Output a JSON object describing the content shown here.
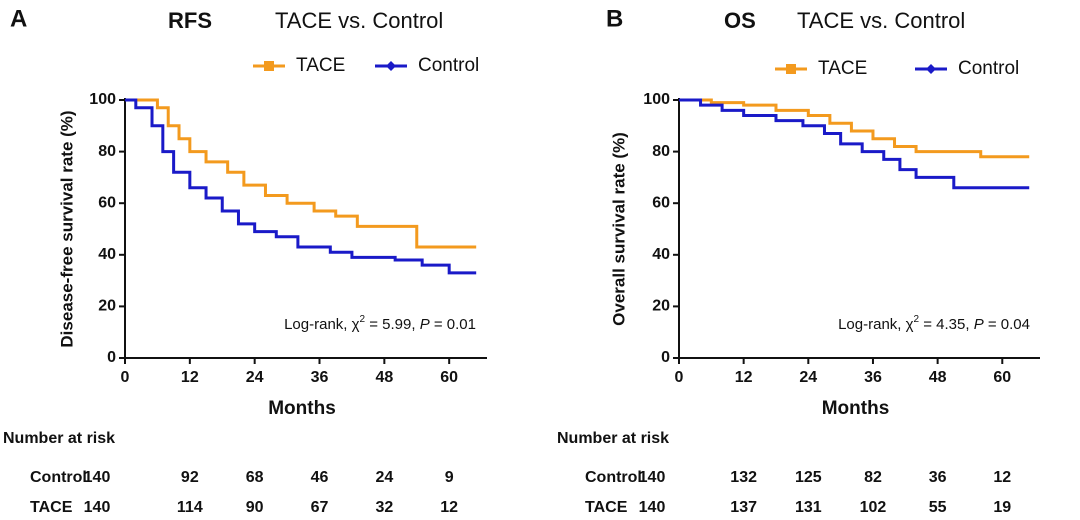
{
  "chart_data": [
    {
      "type": "line",
      "step": true,
      "panel": "A",
      "title": "RFS",
      "subtitle": "TACE vs. Control",
      "xlabel": "Months",
      "ylabel": "Disease-free survival rate (%)",
      "xlim": [
        0,
        67
      ],
      "ylim": [
        0,
        100
      ],
      "xticks": [
        0,
        12,
        24,
        36,
        48,
        60
      ],
      "yticks": [
        0,
        20,
        40,
        60,
        80,
        100
      ],
      "legend": "top",
      "series": [
        {
          "name": "TACE",
          "color": "#f39a1e",
          "marker": "square",
          "x": [
            0,
            4,
            6,
            8,
            10,
            12,
            15,
            19,
            22,
            26,
            30,
            35,
            39,
            43,
            53,
            54,
            65
          ],
          "values": [
            100,
            100,
            97,
            90,
            85,
            80,
            76,
            72,
            67,
            63,
            60,
            57,
            55,
            51,
            51,
            43,
            43
          ]
        },
        {
          "name": "Control",
          "color": "#1a1ac8",
          "marker": "diamond",
          "x": [
            0,
            2,
            5,
            7,
            9,
            12,
            15,
            18,
            21,
            24,
            28,
            32,
            38,
            42,
            50,
            55,
            60,
            65
          ],
          "values": [
            100,
            97,
            90,
            80,
            72,
            66,
            62,
            57,
            52,
            49,
            47,
            43,
            41,
            39,
            38,
            36,
            33,
            33
          ]
        }
      ],
      "annotation": [
        "Log-rank, χ",
        "2",
        " = 5.99, ",
        "P",
        " = 0.01"
      ],
      "risk_table": {
        "title": "Number at risk",
        "rows": [
          {
            "name": "Control",
            "values": [
              140,
              92,
              68,
              46,
              24,
              9
            ]
          },
          {
            "name": "TACE",
            "values": [
              140,
              114,
              90,
              67,
              32,
              12
            ]
          }
        ]
      }
    },
    {
      "type": "line",
      "step": true,
      "panel": "B",
      "title": "OS",
      "subtitle": "TACE vs. Control",
      "xlabel": "Months",
      "ylabel": "Overall survival rate (%)",
      "xlim": [
        0,
        67
      ],
      "ylim": [
        0,
        100
      ],
      "xticks": [
        0,
        12,
        24,
        36,
        48,
        60
      ],
      "yticks": [
        0,
        20,
        40,
        60,
        80,
        100
      ],
      "legend": "top",
      "series": [
        {
          "name": "TACE",
          "color": "#f39a1e",
          "marker": "square",
          "x": [
            0,
            6,
            12,
            18,
            24,
            28,
            32,
            36,
            40,
            44,
            52,
            56,
            65
          ],
          "values": [
            100,
            99,
            98,
            96,
            94,
            91,
            88,
            85,
            82,
            80,
            80,
            78,
            78
          ]
        },
        {
          "name": "Control",
          "color": "#1a1ac8",
          "marker": "diamond",
          "x": [
            0,
            4,
            8,
            12,
            18,
            23,
            27,
            30,
            34,
            38,
            41,
            44,
            48,
            51,
            65
          ],
          "values": [
            100,
            98,
            96,
            94,
            92,
            90,
            87,
            83,
            80,
            77,
            73,
            70,
            70,
            66,
            66
          ]
        }
      ],
      "annotation": [
        "Log-rank, χ",
        "2",
        " = 4.35, ",
        "P",
        " = 0.04"
      ],
      "risk_table": {
        "title": "Number at risk",
        "rows": [
          {
            "name": "Control",
            "values": [
              140,
              132,
              125,
              82,
              36,
              12
            ]
          },
          {
            "name": "TACE",
            "values": [
              140,
              137,
              131,
              102,
              55,
              19
            ]
          }
        ]
      }
    }
  ]
}
